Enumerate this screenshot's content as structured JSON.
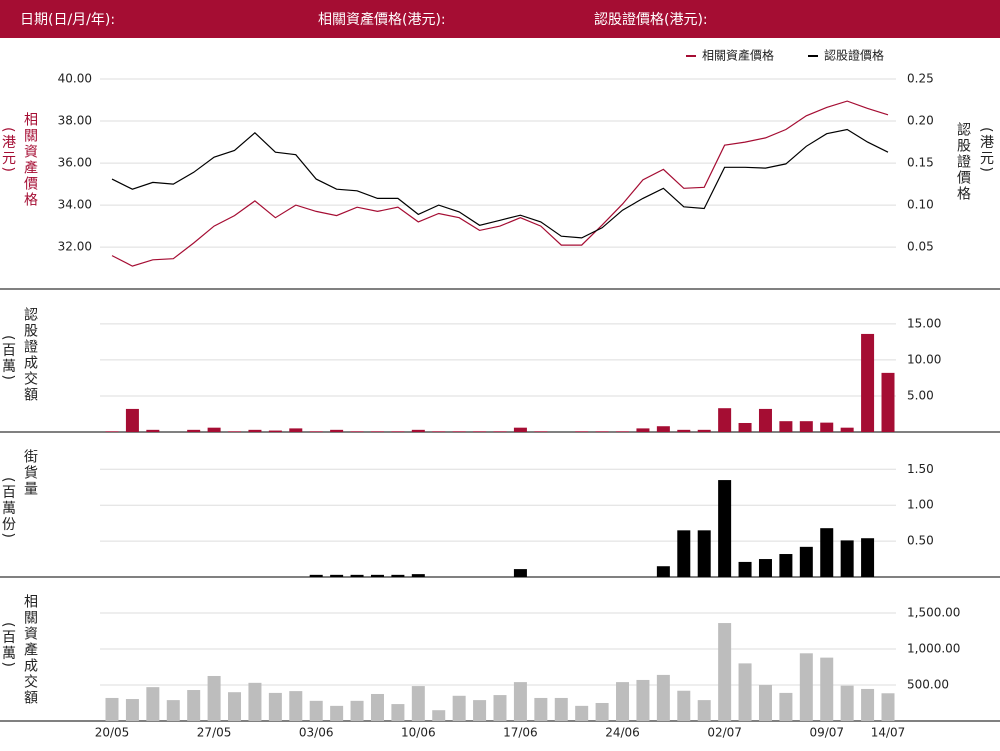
{
  "header": {
    "date_label": "日期(日/月/年):",
    "underlying_label": "相關資產價格(港元):",
    "warrant_label": "認股證價格(港元):"
  },
  "chart_data": [
    {
      "type": "line",
      "ylabel": "相關資產價格",
      "yunit": "(港元)",
      "y2label": "認股證價格",
      "y2unit": "(港元)",
      "ylim": [
        30.2,
        41
      ],
      "yticks": [
        {
          "value": 32,
          "label": "32.00"
        },
        {
          "value": 34,
          "label": "34.00"
        },
        {
          "value": 36,
          "label": "36.00"
        },
        {
          "value": 38,
          "label": "38.00"
        },
        {
          "value": 40,
          "label": "40.00"
        }
      ],
      "y2lim": [
        0.005,
        0.275
      ],
      "y2ticks": [
        {
          "value": 0.05,
          "label": "0.05"
        },
        {
          "value": 0.1,
          "label": "0.10"
        },
        {
          "value": 0.15,
          "label": "0.15"
        },
        {
          "value": 0.2,
          "label": "0.20"
        },
        {
          "value": 0.25,
          "label": "0.25"
        }
      ],
      "grid": true,
      "legend": "top-right",
      "series": [
        {
          "name": "相關資產價格",
          "color": "#a50d33",
          "values": [
            31.6,
            31.1,
            31.4,
            31.45,
            32.2,
            33.0,
            33.5,
            34.2,
            33.4,
            34.0,
            33.7,
            33.5,
            33.9,
            33.7,
            33.9,
            33.2,
            33.6,
            33.4,
            32.8,
            33.0,
            33.4,
            33.0,
            32.1,
            32.1,
            33.05,
            34.05,
            35.2,
            35.7,
            34.8,
            34.85,
            36.85,
            37.0,
            37.2,
            37.6,
            38.25,
            38.65,
            38.95,
            38.6,
            38.3
          ]
        },
        {
          "name": "認股證價格",
          "color": "#000000",
          "axis": "y2",
          "values": [
            0.131,
            0.119,
            0.127,
            0.125,
            0.139,
            0.157,
            0.165,
            0.186,
            0.163,
            0.16,
            0.131,
            0.119,
            0.117,
            0.108,
            0.108,
            0.089,
            0.1,
            0.092,
            0.076,
            0.082,
            0.088,
            0.08,
            0.063,
            0.061,
            0.073,
            0.094,
            0.108,
            0.12,
            0.098,
            0.096,
            0.145,
            0.145,
            0.144,
            0.149,
            0.17,
            0.185,
            0.19,
            0.175,
            0.163
          ]
        }
      ]
    },
    {
      "type": "bar",
      "ylabel": "認股證成交額",
      "yunit": "(百萬)",
      "color": "#a50d33",
      "grid": true,
      "y_axis": "right",
      "ylim": [
        0,
        19
      ],
      "yticks": [
        {
          "value": 5,
          "label": "5.00"
        },
        {
          "value": 10,
          "label": "10.00"
        },
        {
          "value": 15,
          "label": "15.00"
        }
      ],
      "values": [
        0.1,
        3.2,
        0.3,
        0,
        0.3,
        0.6,
        0.1,
        0.3,
        0.2,
        0.5,
        0.1,
        0.3,
        0.1,
        0.1,
        0.1,
        0.3,
        0.1,
        0.1,
        0.1,
        0.1,
        0.6,
        0.1,
        0,
        0.1,
        0.1,
        0.1,
        0.5,
        0.8,
        0.3,
        0.3,
        3.3,
        1.25,
        3.2,
        1.5,
        1.5,
        1.3,
        0.6,
        13.6,
        8.2
      ]
    },
    {
      "type": "bar",
      "ylabel": "街貨量",
      "yunit": "(百萬份)",
      "color": "#000000",
      "grid": true,
      "y_axis": "right",
      "ylim": [
        0,
        1.95
      ],
      "yticks": [
        {
          "value": 0.5,
          "label": "0.50"
        },
        {
          "value": 1,
          "label": "1.00"
        },
        {
          "value": 1.5,
          "label": "1.50"
        }
      ],
      "values": [
        0,
        0,
        0,
        0,
        0,
        0,
        0,
        0,
        0,
        0,
        0.03,
        0.03,
        0.03,
        0.03,
        0.03,
        0.04,
        0,
        0,
        0,
        0,
        0.11,
        0,
        0,
        0,
        0,
        0,
        0,
        0.15,
        0.65,
        0.65,
        1.35,
        0.21,
        0.25,
        0.32,
        0.42,
        0.68,
        0.51,
        0.54,
        0
      ]
    },
    {
      "type": "bar",
      "ylabel": "相關資產成交額",
      "yunit": "(百萬)",
      "color": "#bdbdbd",
      "grid": true,
      "y_axis": "right",
      "ylim": [
        0,
        1930
      ],
      "yticks": [
        {
          "value": 500,
          "label": "500.00"
        },
        {
          "value": 1000,
          "label": "1,000.00"
        },
        {
          "value": 1500,
          "label": "1,500.00"
        }
      ],
      "categories": [
        "20/05",
        null,
        null,
        null,
        null,
        "27/05",
        null,
        null,
        null,
        null,
        "03/06",
        null,
        null,
        null,
        null,
        "10/06",
        null,
        null,
        null,
        null,
        "17/06",
        null,
        null,
        null,
        null,
        "24/06",
        null,
        null,
        null,
        null,
        "02/07",
        null,
        null,
        null,
        null,
        "09/07",
        null,
        null,
        "14/07"
      ],
      "values": [
        320,
        305,
        470,
        290,
        430,
        625,
        400,
        530,
        390,
        415,
        280,
        210,
        280,
        375,
        235,
        485,
        150,
        350,
        290,
        360,
        540,
        320,
        320,
        210,
        250,
        540,
        570,
        640,
        420,
        290,
        1360,
        800,
        500,
        390,
        940,
        880,
        490,
        445,
        385
      ]
    }
  ]
}
